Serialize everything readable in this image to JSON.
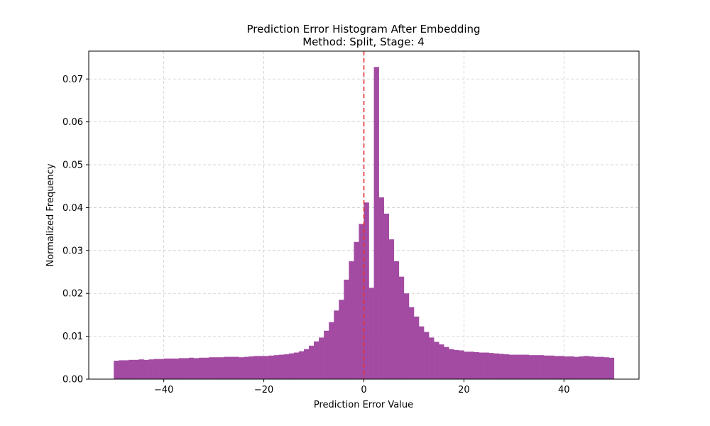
{
  "chart_data": {
    "type": "bar",
    "title": "Prediction Error Histogram After Embedding",
    "subtitle": "Method: Split, Stage: 4",
    "xlabel": "Prediction Error Value",
    "ylabel": "Normalized Frequency",
    "xlim": [
      -55,
      55
    ],
    "ylim": [
      0,
      0.0765
    ],
    "xticks": [
      -40,
      -20,
      0,
      20,
      40
    ],
    "xtick_labels": [
      "−40",
      "−20",
      "0",
      "20",
      "40"
    ],
    "yticks": [
      0,
      0.01,
      0.02,
      0.03,
      0.04,
      0.05,
      0.06,
      0.07
    ],
    "ytick_labels": [
      "0.00",
      "0.01",
      "0.02",
      "0.03",
      "0.04",
      "0.05",
      "0.06",
      "0.07"
    ],
    "grid": true,
    "bar_color": "#a34ba3",
    "reference_line": {
      "x": 0,
      "color": "#e8312f",
      "style": "dashed"
    },
    "bin_start": -50,
    "bin_width": 1,
    "values": [
      0.0043,
      0.0044,
      0.0044,
      0.0045,
      0.0045,
      0.0046,
      0.0045,
      0.0046,
      0.0047,
      0.0047,
      0.0048,
      0.0048,
      0.0048,
      0.0049,
      0.0049,
      0.005,
      0.0049,
      0.005,
      0.005,
      0.0051,
      0.0051,
      0.0051,
      0.0052,
      0.0052,
      0.0052,
      0.0051,
      0.0052,
      0.0053,
      0.0054,
      0.0054,
      0.0054,
      0.0055,
      0.0056,
      0.0057,
      0.0058,
      0.006,
      0.0062,
      0.0065,
      0.007,
      0.0078,
      0.0088,
      0.0097,
      0.0113,
      0.0133,
      0.016,
      0.0185,
      0.0232,
      0.0275,
      0.032,
      0.0362,
      0.0412,
      0.0213,
      0.0728,
      0.0424,
      0.0386,
      0.0326,
      0.0275,
      0.0239,
      0.02,
      0.0168,
      0.0146,
      0.0123,
      0.011,
      0.0097,
      0.0087,
      0.0081,
      0.0075,
      0.007,
      0.0068,
      0.0067,
      0.0064,
      0.0064,
      0.0063,
      0.0062,
      0.0062,
      0.0061,
      0.006,
      0.0059,
      0.0058,
      0.0057,
      0.0057,
      0.0057,
      0.0057,
      0.0056,
      0.0056,
      0.0056,
      0.0055,
      0.0055,
      0.0054,
      0.0054,
      0.0053,
      0.0053,
      0.0052,
      0.0053,
      0.0054,
      0.0053,
      0.0052,
      0.0052,
      0.0051,
      0.005
    ]
  }
}
